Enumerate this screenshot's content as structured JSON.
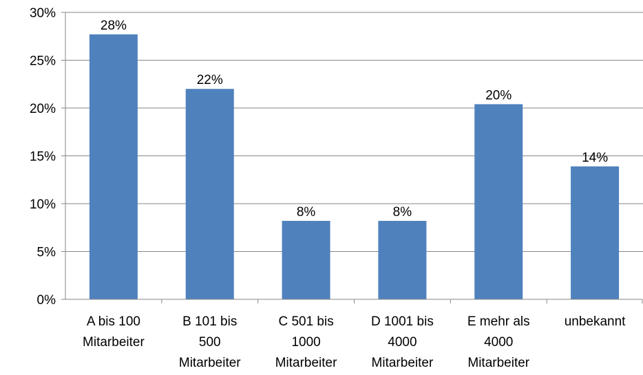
{
  "chart_data": {
    "type": "bar",
    "title": "",
    "xlabel": "",
    "ylabel": "",
    "categories": [
      [
        "A bis 100",
        "Mitarbeiter"
      ],
      [
        "B 101 bis",
        "500",
        "Mitarbeiter"
      ],
      [
        "C 501 bis",
        "1000",
        "Mitarbeiter"
      ],
      [
        "D 1001 bis",
        "4000",
        "Mitarbeiter"
      ],
      [
        "E mehr als",
        "4000",
        "Mitarbeiter"
      ],
      [
        "unbekannt"
      ]
    ],
    "values": [
      27.7,
      22.0,
      8.2,
      8.2,
      20.4,
      13.9
    ],
    "data_labels": [
      "28%",
      "22%",
      "8%",
      "8%",
      "20%",
      "14%"
    ],
    "ylim": [
      0,
      30
    ],
    "yticks": [
      0,
      5,
      10,
      15,
      20,
      25,
      30
    ],
    "ytick_labels": [
      "0%",
      "5%",
      "10%",
      "15%",
      "20%",
      "25%",
      "30%"
    ],
    "grid": true,
    "legend": "none",
    "colors": {
      "bar": "#4F81BD",
      "grid": "#868686",
      "axis": "#868686",
      "text": "#000000"
    }
  }
}
